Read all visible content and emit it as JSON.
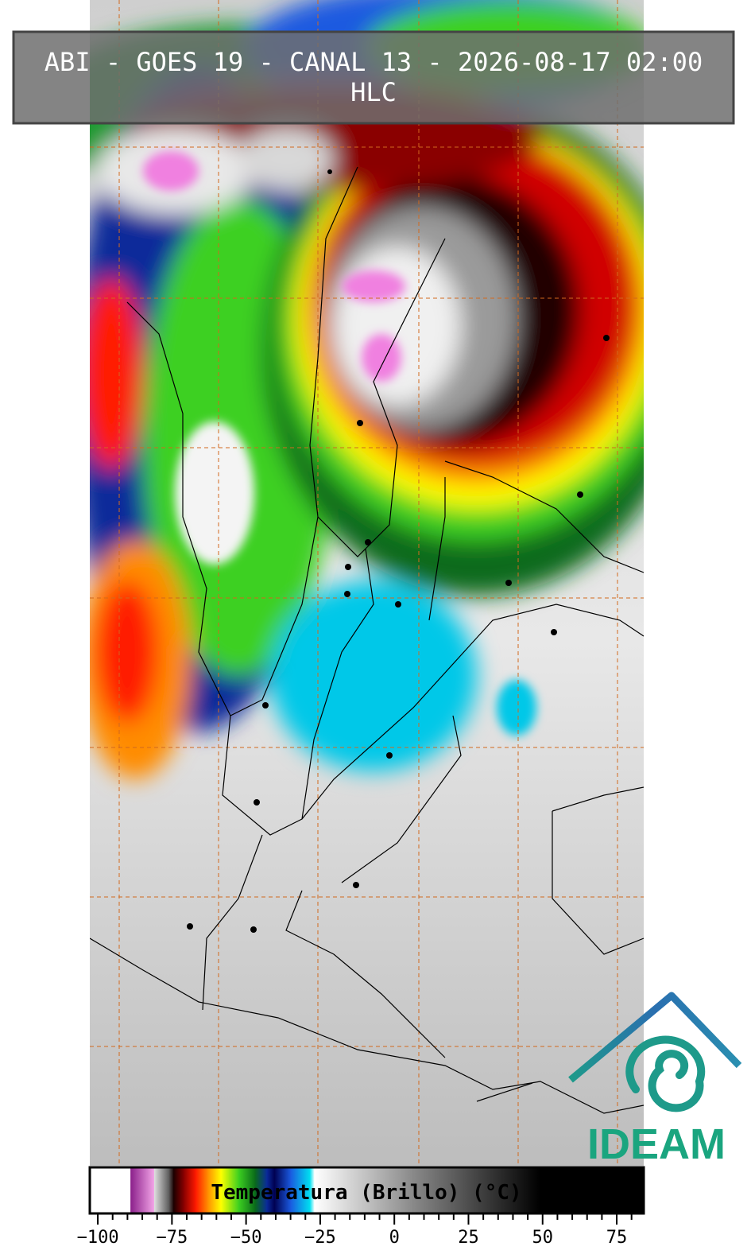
{
  "header": {
    "title": "ABI - GOES 19 - CANAL 13 - 2026-08-17 02:00",
    "subtitle": "HLC"
  },
  "colorbar": {
    "label": "Temperatura (Brillo) (°C)",
    "range": [
      -102.7,
      84.1
    ],
    "ticks": [
      {
        "value": -100,
        "label": "−100"
      },
      {
        "value": -75,
        "label": "−75"
      },
      {
        "value": -50,
        "label": "−50"
      },
      {
        "value": -25,
        "label": "−25"
      },
      0,
      25,
      50,
      75
    ],
    "colorscale": [
      {
        "value": -102.7,
        "color": "#ffffff"
      },
      {
        "value": -89,
        "color": "#ffffff"
      },
      {
        "value": -89,
        "color": "#8a1f8a"
      },
      {
        "value": -81,
        "color": "#f4a6e8"
      },
      {
        "value": -81,
        "color": "#e0e0e0"
      },
      {
        "value": -76,
        "color": "#5a5a5a"
      },
      {
        "value": -74.5,
        "color": "#1a0000"
      },
      {
        "value": -71,
        "color": "#8a0000"
      },
      {
        "value": -67,
        "color": "#ff1a00"
      },
      {
        "value": -63,
        "color": "#ff8c00"
      },
      {
        "value": -58.5,
        "color": "#ffff00"
      },
      {
        "value": -52.5,
        "color": "#3cd020"
      },
      {
        "value": -47,
        "color": "#0a6a1a"
      },
      {
        "value": -43,
        "color": "#0a2a9a"
      },
      {
        "value": -40.5,
        "color": "#000050"
      },
      {
        "value": -35,
        "color": "#1a5ae0"
      },
      {
        "value": -28.5,
        "color": "#00e0f0"
      },
      {
        "value": -27,
        "color": "#ffffff"
      },
      {
        "value": 6,
        "color": "#8a8a8a"
      },
      {
        "value": 49,
        "color": "#000000"
      },
      {
        "value": 84.1,
        "color": "#000000"
      }
    ]
  },
  "logo": {
    "text": "IDEAM"
  }
}
